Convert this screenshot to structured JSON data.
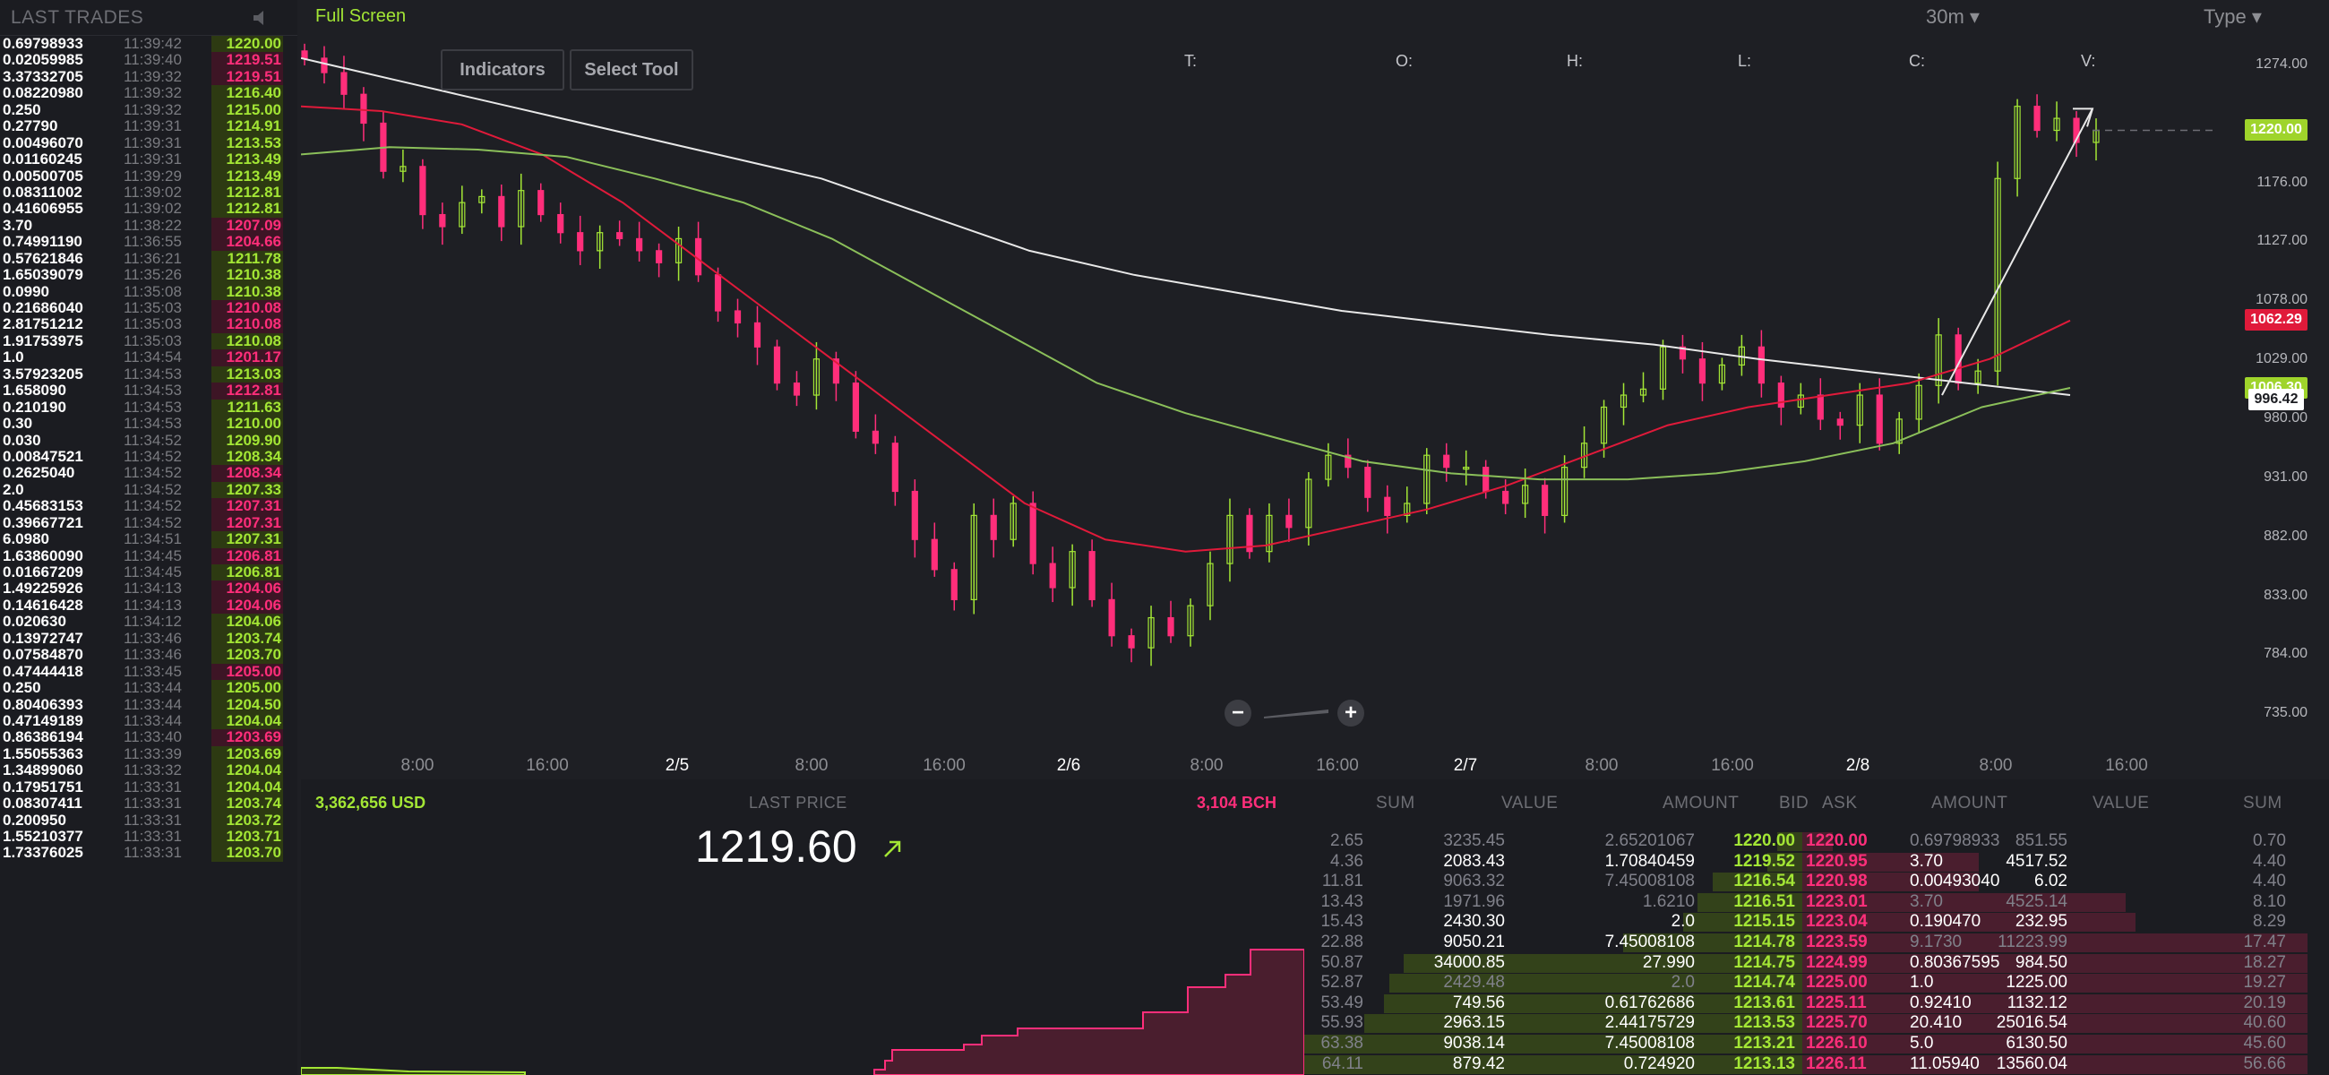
{
  "trades": {
    "title": "LAST TRADES",
    "rows": [
      {
        "amount": "0.69798933",
        "time": "11:39:42",
        "price": "1220.00",
        "dir": "up"
      },
      {
        "amount": "0.02059985",
        "time": "11:39:40",
        "price": "1219.51",
        "dir": "down"
      },
      {
        "amount": "3.37332705",
        "time": "11:39:32",
        "price": "1219.51",
        "dir": "down"
      },
      {
        "amount": "0.08220980",
        "time": "11:39:32",
        "price": "1216.40",
        "dir": "up"
      },
      {
        "amount": "0.250",
        "time": "11:39:32",
        "price": "1215.00",
        "dir": "up"
      },
      {
        "amount": "0.27790",
        "time": "11:39:31",
        "price": "1214.91",
        "dir": "up"
      },
      {
        "amount": "0.00496070",
        "time": "11:39:31",
        "price": "1213.53",
        "dir": "up"
      },
      {
        "amount": "0.01160245",
        "time": "11:39:31",
        "price": "1213.49",
        "dir": "up"
      },
      {
        "amount": "0.00500705",
        "time": "11:39:29",
        "price": "1213.49",
        "dir": "up"
      },
      {
        "amount": "0.08311002",
        "time": "11:39:02",
        "price": "1212.81",
        "dir": "up"
      },
      {
        "amount": "0.41606955",
        "time": "11:39:02",
        "price": "1212.81",
        "dir": "up"
      },
      {
        "amount": "3.70",
        "time": "11:38:22",
        "price": "1207.09",
        "dir": "down"
      },
      {
        "amount": "0.74991190",
        "time": "11:36:55",
        "price": "1204.66",
        "dir": "down"
      },
      {
        "amount": "0.57621846",
        "time": "11:36:21",
        "price": "1211.78",
        "dir": "up"
      },
      {
        "amount": "1.65039079",
        "time": "11:35:26",
        "price": "1210.38",
        "dir": "up"
      },
      {
        "amount": "0.0990",
        "time": "11:35:08",
        "price": "1210.38",
        "dir": "up"
      },
      {
        "amount": "0.21686040",
        "time": "11:35:03",
        "price": "1210.08",
        "dir": "down"
      },
      {
        "amount": "2.81751212",
        "time": "11:35:03",
        "price": "1210.08",
        "dir": "down"
      },
      {
        "amount": "1.91753975",
        "time": "11:35:03",
        "price": "1210.08",
        "dir": "up"
      },
      {
        "amount": "1.0",
        "time": "11:34:54",
        "price": "1201.17",
        "dir": "down"
      },
      {
        "amount": "3.57923205",
        "time": "11:34:53",
        "price": "1213.03",
        "dir": "up"
      },
      {
        "amount": "1.658090",
        "time": "11:34:53",
        "price": "1212.81",
        "dir": "down"
      },
      {
        "amount": "0.210190",
        "time": "11:34:53",
        "price": "1211.63",
        "dir": "up"
      },
      {
        "amount": "0.30",
        "time": "11:34:53",
        "price": "1210.00",
        "dir": "up"
      },
      {
        "amount": "0.030",
        "time": "11:34:52",
        "price": "1209.90",
        "dir": "up"
      },
      {
        "amount": "0.00847521",
        "time": "11:34:52",
        "price": "1208.34",
        "dir": "up"
      },
      {
        "amount": "0.2625040",
        "time": "11:34:52",
        "price": "1208.34",
        "dir": "down"
      },
      {
        "amount": "2.0",
        "time": "11:34:52",
        "price": "1207.33",
        "dir": "up"
      },
      {
        "amount": "0.45683153",
        "time": "11:34:52",
        "price": "1207.31",
        "dir": "down"
      },
      {
        "amount": "0.39667721",
        "time": "11:34:52",
        "price": "1207.31",
        "dir": "down"
      },
      {
        "amount": "6.0980",
        "time": "11:34:51",
        "price": "1207.31",
        "dir": "up"
      },
      {
        "amount": "1.63860090",
        "time": "11:34:45",
        "price": "1206.81",
        "dir": "down"
      },
      {
        "amount": "0.01667209",
        "time": "11:34:45",
        "price": "1206.81",
        "dir": "up"
      },
      {
        "amount": "1.49225926",
        "time": "11:34:13",
        "price": "1204.06",
        "dir": "down"
      },
      {
        "amount": "0.14616428",
        "time": "11:34:13",
        "price": "1204.06",
        "dir": "down"
      },
      {
        "amount": "0.020630",
        "time": "11:34:12",
        "price": "1204.06",
        "dir": "up"
      },
      {
        "amount": "0.13972747",
        "time": "11:33:46",
        "price": "1203.74",
        "dir": "up"
      },
      {
        "amount": "0.07584870",
        "time": "11:33:46",
        "price": "1203.70",
        "dir": "up"
      },
      {
        "amount": "0.47444418",
        "time": "11:33:45",
        "price": "1205.00",
        "dir": "down"
      },
      {
        "amount": "0.250",
        "time": "11:33:44",
        "price": "1205.00",
        "dir": "up"
      },
      {
        "amount": "0.80406393",
        "time": "11:33:44",
        "price": "1204.50",
        "dir": "up"
      },
      {
        "amount": "0.47149189",
        "time": "11:33:44",
        "price": "1204.04",
        "dir": "up"
      },
      {
        "amount": "0.86386194",
        "time": "11:33:40",
        "price": "1203.69",
        "dir": "down"
      },
      {
        "amount": "1.55055363",
        "time": "11:33:39",
        "price": "1203.69",
        "dir": "up"
      },
      {
        "amount": "1.34899060",
        "time": "11:33:32",
        "price": "1204.04",
        "dir": "up"
      },
      {
        "amount": "0.17951751",
        "time": "11:33:31",
        "price": "1204.04",
        "dir": "up"
      },
      {
        "amount": "0.08307411",
        "time": "11:33:31",
        "price": "1203.74",
        "dir": "up"
      },
      {
        "amount": "0.200950",
        "time": "11:33:31",
        "price": "1203.72",
        "dir": "up"
      },
      {
        "amount": "1.55210377",
        "time": "11:33:31",
        "price": "1203.71",
        "dir": "up"
      },
      {
        "amount": "1.73376025",
        "time": "11:33:31",
        "price": "1203.70",
        "dir": "up"
      }
    ]
  },
  "toolbar": {
    "fullscreen_label": "Full Screen",
    "indicators_label": "Indicators",
    "select_tool_label": "Select Tool",
    "interval_label": "30m",
    "type_label": "Type"
  },
  "ohlc_labels": [
    "T:",
    "O:",
    "H:",
    "L:",
    "C:",
    "V:"
  ],
  "chart": {
    "y_ticks": [
      "1274.00",
      "1176.00",
      "1127.00",
      "1078.00",
      "1029.00",
      "980.00",
      "931.00",
      "882.00",
      "833.00",
      "784.00",
      "735.00"
    ],
    "x_ticks": [
      {
        "label": "8:00",
        "major": false
      },
      {
        "label": "16:00",
        "major": false
      },
      {
        "label": "2/5",
        "major": true
      },
      {
        "label": "8:00",
        "major": false
      },
      {
        "label": "16:00",
        "major": false
      },
      {
        "label": "2/6",
        "major": true
      },
      {
        "label": "8:00",
        "major": false
      },
      {
        "label": "16:00",
        "major": false
      },
      {
        "label": "2/7",
        "major": true
      },
      {
        "label": "8:00",
        "major": false
      },
      {
        "label": "16:00",
        "major": false
      },
      {
        "label": "2/8",
        "major": true
      },
      {
        "label": "8:00",
        "major": false
      },
      {
        "label": "16:00",
        "major": false
      }
    ],
    "tags": {
      "last": "1220.00",
      "red": "1062.29",
      "green": "1006.30",
      "white": "996.42"
    },
    "colors": {
      "up": "#a3e635",
      "down": "#ff2e7a",
      "ma_white": "#e8e8e8",
      "ma_red": "#e01a3a",
      "ma_green": "#8bbf5a"
    }
  },
  "chart_data": {
    "type": "candlestick",
    "ylim": [
      735,
      1274
    ],
    "x_range": [
      "2/4 04:00",
      "2/8 20:00"
    ],
    "close_path": [
      1280,
      1268,
      1250,
      1226,
      1186,
      1190,
      1150,
      1140,
      1160,
      1165,
      1140,
      1170,
      1150,
      1135,
      1120,
      1135,
      1130,
      1120,
      1110,
      1130,
      1100,
      1070,
      1060,
      1040,
      1010,
      1000,
      1030,
      1010,
      970,
      960,
      920,
      880,
      855,
      830,
      900,
      880,
      910,
      860,
      840,
      870,
      830,
      800,
      790,
      815,
      800,
      825,
      860,
      900,
      870,
      900,
      890,
      930,
      950,
      940,
      915,
      900,
      910,
      950,
      940,
      940,
      920,
      910,
      925,
      900,
      940,
      960,
      990,
      1000,
      1005,
      1040,
      1030,
      1010,
      1025,
      1040,
      1010,
      990,
      1000,
      980,
      975,
      1000,
      960,
      980,
      1008,
      1050,
      1010,
      1020,
      1180,
      1240,
      1220,
      1230,
      1210,
      1220
    ],
    "moving_averages": [
      {
        "name": "MA white",
        "points": [
          1280,
          1260,
          1240,
          1220,
          1200,
          1180,
          1150,
          1120,
          1100,
          1085,
          1070,
          1060,
          1050,
          1042,
          1030,
          1020,
          1010,
          1000
        ]
      },
      {
        "name": "MA red",
        "points": [
          1240,
          1236,
          1225,
          1200,
          1160,
          1110,
          1060,
          1010,
          960,
          910,
          880,
          870,
          875,
          890,
          905,
          925,
          950,
          975,
          990,
          1000,
          1010,
          1030,
          1062
        ]
      },
      {
        "name": "MA green",
        "points": [
          1200,
          1206,
          1204,
          1198,
          1180,
          1160,
          1130,
          1090,
          1050,
          1010,
          985,
          965,
          945,
          935,
          930,
          930,
          935,
          945,
          960,
          990,
          1006
        ]
      }
    ]
  },
  "bottom": {
    "usd_total": "3,362,656 USD",
    "last_price_label": "LAST PRICE",
    "bch_total": "3,104 BCH",
    "last_price": "1219.60"
  },
  "orderbook": {
    "headers": [
      "SUM",
      "VALUE",
      "AMOUNT",
      "BID",
      "ASK",
      "AMOUNT",
      "VALUE",
      "SUM"
    ],
    "rows": [
      {
        "sum_b": "2.65",
        "val_b": "3235.45",
        "amt_b": "2.65201067",
        "bid": "1220.00",
        "ask": "1220.00",
        "amt_a": "0.69798933",
        "val_a": "851.55",
        "sum_a": "0.70",
        "bid_depth": 0.05,
        "ask_depth": 0.06,
        "bid_dim": true,
        "ask_dim": true
      },
      {
        "sum_b": "4.36",
        "val_b": "2083.43",
        "amt_b": "1.70840459",
        "bid": "1219.52",
        "ask": "1220.95",
        "amt_a": "3.70",
        "val_a": "4517.52",
        "sum_a": "4.40",
        "bid_depth": 0.07,
        "ask_depth": 0.35,
        "bid_dim": false,
        "ask_dim": false
      },
      {
        "sum_b": "11.81",
        "val_b": "9063.32",
        "amt_b": "7.45008108",
        "bid": "1216.54",
        "ask": "1220.98",
        "amt_a": "0.00493040",
        "val_a": "6.02",
        "sum_a": "4.40",
        "bid_depth": 0.18,
        "ask_depth": 0.35,
        "bid_dim": true,
        "ask_dim": false
      },
      {
        "sum_b": "13.43",
        "val_b": "1971.96",
        "amt_b": "1.6210",
        "bid": "1216.51",
        "ask": "1223.01",
        "amt_a": "3.70",
        "val_a": "4525.14",
        "sum_a": "8.10",
        "bid_depth": 0.21,
        "ask_depth": 0.64,
        "bid_dim": true,
        "ask_dim": true
      },
      {
        "sum_b": "15.43",
        "val_b": "2430.30",
        "amt_b": "2.0",
        "bid": "1215.15",
        "ask": "1223.04",
        "amt_a": "0.190470",
        "val_a": "232.95",
        "sum_a": "8.29",
        "bid_depth": 0.24,
        "ask_depth": 0.66,
        "bid_dim": false,
        "ask_dim": false
      },
      {
        "sum_b": "22.88",
        "val_b": "9050.21",
        "amt_b": "7.45008108",
        "bid": "1214.78",
        "ask": "1223.59",
        "amt_a": "9.1730",
        "val_a": "11223.99",
        "sum_a": "17.47",
        "bid_depth": 0.36,
        "ask_depth": 1.0,
        "bid_dim": false,
        "ask_dim": true
      },
      {
        "sum_b": "50.87",
        "val_b": "34000.85",
        "amt_b": "27.990",
        "bid": "1214.75",
        "ask": "1224.99",
        "amt_a": "0.80367595",
        "val_a": "984.50",
        "sum_a": "18.27",
        "bid_depth": 0.8,
        "ask_depth": 1.0,
        "bid_dim": false,
        "ask_dim": false
      },
      {
        "sum_b": "52.87",
        "val_b": "2429.48",
        "amt_b": "2.0",
        "bid": "1214.74",
        "ask": "1225.00",
        "amt_a": "1.0",
        "val_a": "1225.00",
        "sum_a": "19.27",
        "bid_depth": 0.83,
        "ask_depth": 1.0,
        "bid_dim": true,
        "ask_dim": false
      },
      {
        "sum_b": "53.49",
        "val_b": "749.56",
        "amt_b": "0.61762686",
        "bid": "1213.61",
        "ask": "1225.11",
        "amt_a": "0.92410",
        "val_a": "1132.12",
        "sum_a": "20.19",
        "bid_depth": 0.84,
        "ask_depth": 1.0,
        "bid_dim": false,
        "ask_dim": false
      },
      {
        "sum_b": "55.93",
        "val_b": "2963.15",
        "amt_b": "2.44175729",
        "bid": "1213.53",
        "ask": "1225.70",
        "amt_a": "20.410",
        "val_a": "25016.54",
        "sum_a": "40.60",
        "bid_depth": 0.88,
        "ask_depth": 1.0,
        "bid_dim": false,
        "ask_dim": false
      },
      {
        "sum_b": "63.38",
        "val_b": "9038.14",
        "amt_b": "7.45008108",
        "bid": "1213.21",
        "ask": "1226.10",
        "amt_a": "5.0",
        "val_a": "6130.50",
        "sum_a": "45.60",
        "bid_depth": 1.0,
        "ask_depth": 1.0,
        "bid_dim": false,
        "ask_dim": false
      },
      {
        "sum_b": "64.11",
        "val_b": "879.42",
        "amt_b": "0.724920",
        "bid": "1213.13",
        "ask": "1226.11",
        "amt_a": "11.05940",
        "val_a": "13560.04",
        "sum_a": "56.66",
        "bid_depth": 1.0,
        "ask_depth": 1.0,
        "bid_dim": false,
        "ask_dim": false
      }
    ]
  }
}
